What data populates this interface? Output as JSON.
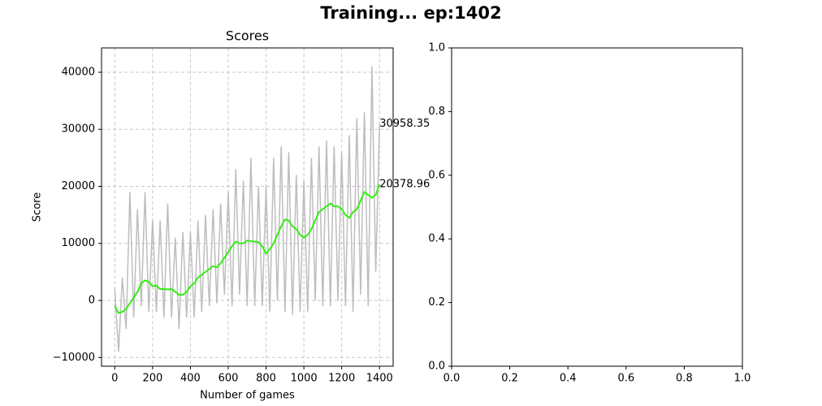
{
  "title": "Training... ep:1402",
  "chart_data": [
    {
      "type": "line",
      "title": "Scores",
      "x_label": "Number of games",
      "y_label": "Score",
      "x": [
        0,
        20,
        40,
        60,
        80,
        100,
        120,
        140,
        160,
        180,
        200,
        220,
        240,
        260,
        280,
        300,
        320,
        340,
        360,
        380,
        400,
        420,
        440,
        460,
        480,
        500,
        520,
        540,
        560,
        580,
        600,
        620,
        640,
        660,
        680,
        700,
        720,
        740,
        760,
        780,
        800,
        820,
        840,
        860,
        880,
        900,
        920,
        940,
        960,
        980,
        1000,
        1020,
        1040,
        1060,
        1080,
        1100,
        1120,
        1140,
        1160,
        1180,
        1200,
        1220,
        1240,
        1260,
        1280,
        1300,
        1320,
        1340,
        1360,
        1380,
        1400
      ],
      "series": [
        {
          "color": "#bdbdbd",
          "end_label": "30958.35",
          "values": [
            2000,
            -9000,
            4000,
            -5000,
            19000,
            -3000,
            16000,
            -1000,
            19000,
            -2000,
            14000,
            -2000,
            14000,
            -3000,
            17000,
            -3000,
            11000,
            -5000,
            12000,
            -3000,
            12000,
            -3000,
            14000,
            -2000,
            15000,
            -1000,
            16000,
            -500,
            17000,
            1000,
            19000,
            -1000,
            23000,
            1000,
            21000,
            -1000,
            25000,
            -1000,
            20000,
            -1000,
            20000,
            -2000,
            25000,
            0,
            27000,
            -2000,
            26000,
            -2500,
            22000,
            -2000,
            21000,
            -2000,
            25000,
            0,
            27000,
            -1000,
            28000,
            -1000,
            27000,
            0,
            26000,
            -1000,
            29000,
            -2000,
            32000,
            1000,
            33000,
            -1000,
            41000,
            5000,
            30958.35
          ]
        },
        {
          "color": "#33ee11",
          "end_label": "20378.96",
          "values": [
            -1000,
            -2200,
            -2000,
            -1500,
            -500,
            500,
            1500,
            3000,
            3500,
            3300,
            2500,
            2600,
            2000,
            2000,
            1900,
            2000,
            1500,
            1000,
            1000,
            1500,
            2500,
            3000,
            4000,
            4500,
            5000,
            5500,
            6000,
            5800,
            6500,
            7500,
            8500,
            9500,
            10300,
            10000,
            10000,
            10500,
            10400,
            10300,
            10200,
            9500,
            8200,
            9000,
            10000,
            11500,
            13000,
            14200,
            14000,
            13000,
            12500,
            11500,
            11000,
            11500,
            12500,
            14000,
            15500,
            16000,
            16500,
            17000,
            16500,
            16500,
            16000,
            15000,
            14500,
            15500,
            16000,
            17500,
            19000,
            18500,
            18000,
            18500,
            20378.96
          ]
        }
      ],
      "xlim": [
        -70,
        1472
      ],
      "ylim": [
        -11530,
        44270
      ],
      "xticks": [
        0,
        200,
        400,
        600,
        800,
        1000,
        1200,
        1400
      ],
      "yticks": [
        {
          "value": -10000,
          "label": "−10000"
        },
        0,
        10000,
        20000,
        30000,
        40000
      ],
      "grid": true
    },
    {
      "type": "line",
      "series": [],
      "xlim": [
        0,
        1
      ],
      "ylim": [
        0,
        1
      ],
      "xticks": [
        {
          "value": 0,
          "label": "0.0"
        },
        {
          "value": 0.2,
          "label": "0.2"
        },
        {
          "value": 0.4,
          "label": "0.4"
        },
        {
          "value": 0.6,
          "label": "0.6"
        },
        {
          "value": 0.8,
          "label": "0.8"
        },
        {
          "value": 1,
          "label": "1.0"
        }
      ],
      "yticks": [
        {
          "value": 0,
          "label": "0.0"
        },
        {
          "value": 0.2,
          "label": "0.2"
        },
        {
          "value": 0.4,
          "label": "0.4"
        },
        {
          "value": 0.6,
          "label": "0.6"
        },
        {
          "value": 0.8,
          "label": "0.8"
        },
        {
          "value": 1,
          "label": "1.0"
        }
      ],
      "grid": false
    }
  ]
}
